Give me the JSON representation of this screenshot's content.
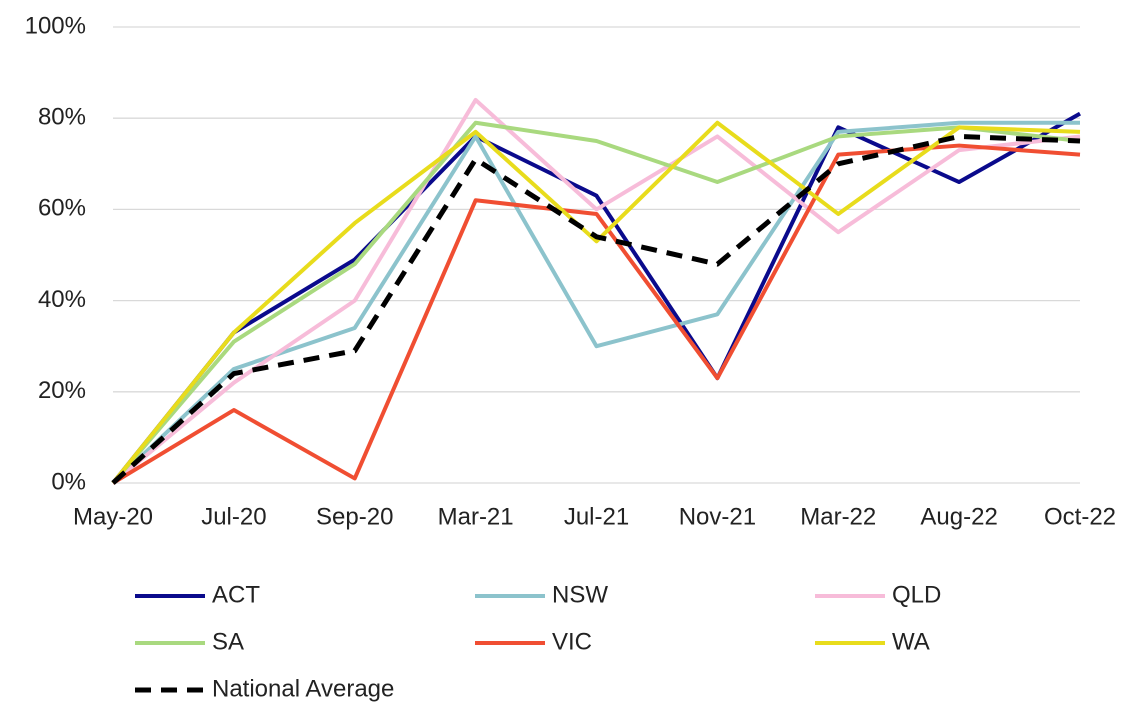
{
  "chart_data": {
    "type": "line",
    "categories": [
      "May-20",
      "Jul-20",
      "Sep-20",
      "Mar-21",
      "Jul-21",
      "Nov-21",
      "Mar-22",
      "Aug-22",
      "Oct-22"
    ],
    "ylim": [
      0,
      100
    ],
    "yticks": [
      {
        "value": 0,
        "label": "0%"
      },
      {
        "value": 20,
        "label": "20%"
      },
      {
        "value": 40,
        "label": "40%"
      },
      {
        "value": 60,
        "label": "60%"
      },
      {
        "value": 80,
        "label": "80%"
      },
      {
        "value": 100,
        "label": "100%"
      }
    ],
    "grid": true,
    "legend": "bottom",
    "series": [
      {
        "name": "ACT",
        "color": "#0a0a8c",
        "values": [
          0,
          33,
          49,
          76,
          63,
          23,
          78,
          66,
          81
        ]
      },
      {
        "name": "NSW",
        "color": "#8cc3cc",
        "values": [
          0,
          25,
          34,
          76,
          30,
          37,
          77,
          79,
          79
        ]
      },
      {
        "name": "QLD",
        "color": "#f7bcd9",
        "values": [
          0,
          22,
          40,
          84,
          60,
          76,
          55,
          73,
          76
        ]
      },
      {
        "name": "SA",
        "color": "#a9d97f",
        "values": [
          0,
          31,
          48,
          79,
          75,
          66,
          76,
          78,
          75
        ]
      },
      {
        "name": "VIC",
        "color": "#f04e32",
        "values": [
          0,
          16,
          1,
          62,
          59,
          23,
          72,
          74,
          72
        ]
      },
      {
        "name": "WA",
        "color": "#e8dc1c",
        "values": [
          0,
          33,
          57,
          77,
          53,
          79,
          59,
          78,
          77
        ]
      },
      {
        "name": "National Average",
        "color": "#000000",
        "dashed": true,
        "values": [
          0,
          24,
          29,
          71,
          54,
          48,
          70,
          76,
          75
        ]
      }
    ]
  }
}
